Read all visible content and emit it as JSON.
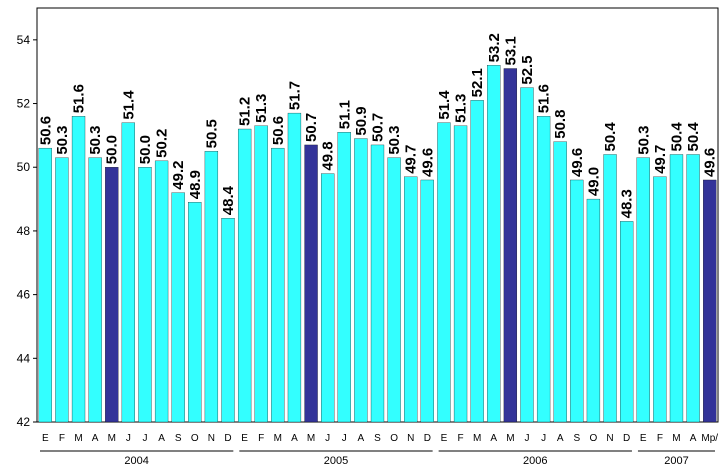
{
  "chart_data": {
    "type": "bar",
    "ylim": [
      42,
      55
    ],
    "yticks": [
      42,
      44,
      46,
      48,
      50,
      52,
      54
    ],
    "grid": false,
    "colors": {
      "normal": "#33FFFF",
      "highlight": "#333399"
    },
    "categories": [
      "E",
      "F",
      "M",
      "A",
      "M",
      "J",
      "J",
      "A",
      "S",
      "O",
      "N",
      "D",
      "E",
      "F",
      "M",
      "A",
      "M",
      "J",
      "J",
      "A",
      "S",
      "O",
      "N",
      "D",
      "E",
      "F",
      "M",
      "A",
      "M",
      "J",
      "J",
      "A",
      "S",
      "O",
      "N",
      "D",
      "E",
      "F",
      "M",
      "A",
      "Mp/"
    ],
    "values": [
      50.6,
      50.3,
      51.6,
      50.3,
      50.0,
      51.4,
      50.0,
      50.2,
      49.2,
      48.9,
      50.5,
      48.4,
      51.2,
      51.3,
      50.6,
      51.7,
      50.7,
      49.8,
      51.1,
      50.9,
      50.7,
      50.3,
      49.7,
      49.6,
      51.4,
      51.3,
      52.1,
      53.2,
      53.1,
      52.5,
      51.6,
      50.8,
      49.6,
      49.0,
      50.4,
      48.3,
      50.3,
      49.7,
      50.4,
      50.4,
      49.6
    ],
    "labels": [
      "50.6",
      "50.3",
      "51.6",
      "50.3",
      "50.0",
      "51.4",
      "50.0",
      "50.2",
      "49.2",
      "48.9",
      "50.5",
      "48.4",
      "51.2",
      "51.3",
      "50.6",
      "51.7",
      "50.7",
      "49.8",
      "51.1",
      "50.9",
      "50.7",
      "50.3",
      "49.7",
      "49.6",
      "51.4",
      "51.3",
      "52.1",
      "53.2",
      "53.1",
      "52.5",
      "51.6",
      "50.8",
      "49.6",
      "49.0",
      "50.4",
      "48.3",
      "50.3",
      "49.7",
      "50.4",
      "50.4",
      "49.6"
    ],
    "highlight_indices": [
      4,
      16,
      28,
      40
    ],
    "year_groups": [
      {
        "label": "2004",
        "start": 0,
        "end": 11
      },
      {
        "label": "2005",
        "start": 12,
        "end": 23
      },
      {
        "label": "2006",
        "start": 24,
        "end": 35
      },
      {
        "label": "2007",
        "start": 36,
        "end": 40
      }
    ]
  }
}
